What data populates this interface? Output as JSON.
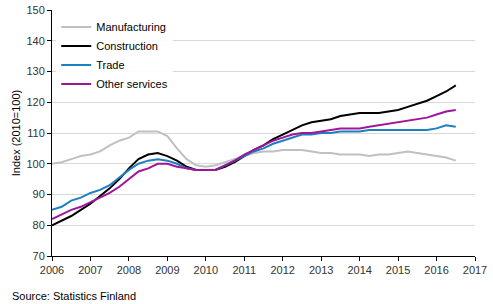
{
  "chart_data": {
    "type": "line",
    "y_label": "Index (2010=100)",
    "source": "Source: Statistics Finland",
    "x": [
      2006,
      2006.25,
      2006.5,
      2006.75,
      2007,
      2007.25,
      2007.5,
      2007.75,
      2008,
      2008.25,
      2008.5,
      2008.75,
      2009,
      2009.25,
      2009.5,
      2009.75,
      2010,
      2010.25,
      2010.5,
      2010.75,
      2011,
      2011.25,
      2011.5,
      2011.75,
      2012,
      2012.25,
      2012.5,
      2012.75,
      2013,
      2013.25,
      2013.5,
      2013.75,
      2014,
      2014.25,
      2014.5,
      2014.75,
      2015,
      2015.25,
      2015.5,
      2015.75,
      2016,
      2016.25,
      2016.5
    ],
    "series": [
      {
        "name": "Manufacturing",
        "color": "#c0c0c0",
        "values": [
          100,
          100.5,
          101.5,
          102.5,
          103,
          104,
          106,
          107.5,
          108.5,
          110.5,
          110.5,
          110.5,
          109,
          105,
          101.5,
          99.5,
          99,
          99.5,
          100.5,
          101.5,
          102.5,
          103.5,
          104,
          104,
          104.5,
          104.5,
          104.5,
          104,
          103.5,
          103.5,
          103,
          103,
          103,
          102.5,
          103,
          103,
          103.5,
          104,
          103.5,
          103,
          102.5,
          102,
          101
        ]
      },
      {
        "name": "Construction",
        "color": "#000000",
        "values": [
          80,
          81.5,
          83,
          85,
          87,
          89.5,
          92,
          95,
          98.5,
          101.5,
          103,
          103.5,
          102.5,
          101,
          99,
          98,
          98,
          98,
          99,
          100.5,
          102.5,
          104.5,
          106,
          108,
          109.5,
          111,
          112.5,
          113.5,
          114,
          114.5,
          115.5,
          116,
          116.5,
          116.5,
          116.5,
          117,
          117.5,
          118.5,
          119.5,
          120.5,
          122,
          123.5,
          125.5
        ]
      },
      {
        "name": "Trade",
        "color": "#1b7fc2",
        "values": [
          85,
          86,
          88,
          89,
          90.5,
          91.5,
          93,
          95.5,
          98,
          100,
          101,
          101.5,
          101,
          100,
          98.5,
          98,
          98,
          98,
          99.5,
          101,
          102.5,
          104,
          105,
          106.5,
          107.5,
          108.5,
          109.5,
          109.5,
          110,
          110,
          110.5,
          110.5,
          110.5,
          111,
          111,
          111,
          111,
          111,
          111,
          111,
          111.5,
          112.5,
          112
        ]
      },
      {
        "name": "Other services",
        "color": "#a0169a",
        "values": [
          82,
          83.5,
          85,
          86,
          87.5,
          89,
          90.5,
          92.5,
          95,
          97.5,
          98.5,
          100,
          100,
          99,
          98.5,
          98,
          98,
          98,
          99.5,
          101,
          103,
          104.5,
          106,
          107.5,
          108.5,
          109.5,
          110,
          110,
          110.5,
          111,
          111.5,
          111.5,
          111.5,
          112,
          112.5,
          113,
          113.5,
          114,
          114.5,
          115,
          116,
          117,
          117.5
        ]
      }
    ],
    "xlim": [
      2006,
      2017
    ],
    "xticks": [
      2006,
      2007,
      2008,
      2009,
      2010,
      2011,
      2012,
      2013,
      2014,
      2015,
      2016,
      2017
    ],
    "ylim": [
      70,
      150
    ],
    "yticks": [
      70,
      80,
      90,
      100,
      110,
      120,
      130,
      140,
      150
    ],
    "grid": true,
    "legend": "top-left"
  }
}
